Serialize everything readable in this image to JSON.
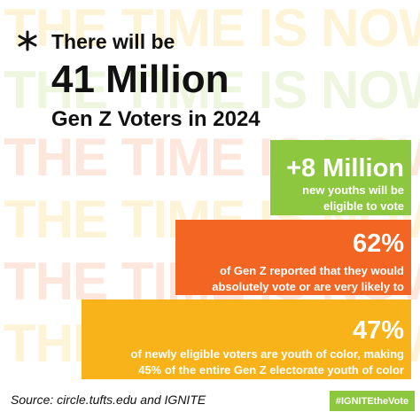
{
  "background_text": [
    "THE TIME IS NOW.",
    "THE TIME IS NOW.",
    "THE TIME IS NOW.",
    "THE TIME IS NOW.",
    "THE TIME IS NOW.",
    "THE TIME IS NOW."
  ],
  "header": {
    "line1": "There will be",
    "headline": "41 Million",
    "line3": "Gen Z Voters in 2024"
  },
  "stats": [
    {
      "figure": "+8 Million",
      "lines": [
        "new youths will be",
        "eligible to vote"
      ]
    },
    {
      "figure": "62%",
      "lines": [
        "of Gen Z reported that they would",
        "absolutely vote or are very likely to"
      ]
    },
    {
      "figure": "47%",
      "lines": [
        "of newly eligible voters are youth of color, making",
        "45% of the entire Gen Z electorate youth of color"
      ]
    }
  ],
  "footer": {
    "source": "Source: circle.tufts.edu and IGNITE",
    "hashtag": "#IGNITEtheVote"
  }
}
